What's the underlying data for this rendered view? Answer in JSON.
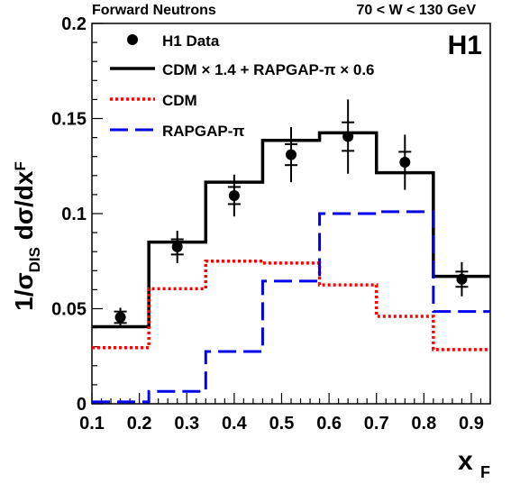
{
  "header": {
    "left": "Forward Neutrons",
    "right": "70 < W < 130 GeV",
    "logo": "H1"
  },
  "colors": {
    "combined": "#000000",
    "cdm": "#ff0000",
    "rapgap": "#0000ee",
    "data": "#000000"
  },
  "chart_data": {
    "type": "line",
    "xlabel": "x",
    "xlabel_sub": "F",
    "ylabel_parts": {
      "prefix": "1/σ",
      "sub": "DIS",
      "middle": " dσ/dx",
      "sub2": "F"
    },
    "xlim": [
      0.1,
      0.94
    ],
    "ylim": [
      0,
      0.2
    ],
    "x_ticks": [
      "0.1",
      "0.2",
      "0.3",
      "0.4",
      "0.5",
      "0.6",
      "0.7",
      "0.8",
      "0.9"
    ],
    "y_ticks": [
      "0",
      "0.05",
      "0.1",
      "0.15",
      "0.2"
    ],
    "legend": [
      {
        "label": "H1 Data",
        "style": "marker"
      },
      {
        "label": "CDM × 1.4 + RAPGAP-π × 0.6",
        "style": "solid"
      },
      {
        "label": "CDM",
        "style": "dotted"
      },
      {
        "label": "RAPGAP-π",
        "style": "dashed"
      }
    ],
    "bin_edges": [
      0.1,
      0.22,
      0.34,
      0.46,
      0.58,
      0.7,
      0.82,
      0.94
    ],
    "series": [
      {
        "name": "CDM × 1.4 + RAPGAP-π × 0.6",
        "style": "solid",
        "values": [
          0.0405,
          0.085,
          0.1165,
          0.1385,
          0.1425,
          0.1215,
          0.067
        ]
      },
      {
        "name": "CDM",
        "style": "dotted",
        "values": [
          0.0295,
          0.0605,
          0.075,
          0.074,
          0.0625,
          0.046,
          0.0285
        ]
      },
      {
        "name": "RAPGAP-π",
        "style": "dashed",
        "values": [
          0.001,
          0.0065,
          0.0275,
          0.0645,
          0.1,
          0.101,
          0.0485
        ]
      }
    ],
    "data_points": {
      "name": "H1 Data",
      "x": [
        0.16,
        0.28,
        0.4,
        0.52,
        0.64,
        0.76,
        0.88
      ],
      "y": [
        0.0455,
        0.0825,
        0.1095,
        0.131,
        0.1405,
        0.127,
        0.0655
      ],
      "stat_err": [
        0.003,
        0.004,
        0.0045,
        0.0055,
        0.0075,
        0.0055,
        0.004
      ],
      "total_err": [
        0.005,
        0.0085,
        0.011,
        0.0145,
        0.0195,
        0.0145,
        0.009
      ]
    }
  }
}
